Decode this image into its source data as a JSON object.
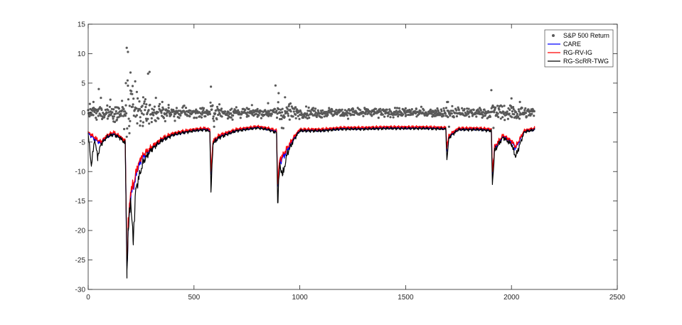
{
  "chart_data": {
    "type": "line",
    "title": "",
    "xlabel": "",
    "ylabel": "",
    "xlim": [
      0,
      2500
    ],
    "ylim": [
      -30,
      15
    ],
    "x_ticks": [
      0,
      500,
      1000,
      1500,
      2000,
      2500
    ],
    "x_tick_labels": [
      "0",
      "500",
      "1000",
      "1500",
      "2000",
      "2500"
    ],
    "y_ticks": [
      15,
      10,
      5,
      0,
      -5,
      -10,
      -15,
      -20,
      -25,
      -30
    ],
    "y_tick_labels": [
      "15",
      "10",
      "5",
      "0",
      "-5",
      "-10",
      "-15",
      "-20",
      "-25",
      "-30"
    ],
    "grid": false,
    "legend_position": "top-right",
    "n_obs": 2110,
    "series": [
      {
        "name": "S&P 500 Return",
        "style": "scatter",
        "color": "#595959",
        "points": [
          [
            10,
            0.6
          ],
          [
            25,
            1.8
          ],
          [
            40,
            -1.2
          ],
          [
            50,
            4.0
          ],
          [
            60,
            2.5
          ],
          [
            75,
            -0.8
          ],
          [
            90,
            1.2
          ],
          [
            105,
            2.2
          ],
          [
            120,
            -1.5
          ],
          [
            135,
            0.9
          ],
          [
            150,
            -0.6
          ],
          [
            160,
            2.0
          ],
          [
            170,
            -2.8
          ],
          [
            178,
            5.0
          ],
          [
            182,
            11.0
          ],
          [
            188,
            10.3
          ],
          [
            195,
            -3.5
          ],
          [
            200,
            6.8
          ],
          [
            210,
            4.5
          ],
          [
            222,
            5.3
          ],
          [
            230,
            3.5
          ],
          [
            245,
            -2.2
          ],
          [
            260,
            2.6
          ],
          [
            275,
            1.4
          ],
          [
            283,
            6.6
          ],
          [
            290,
            6.9
          ],
          [
            300,
            -1.6
          ],
          [
            320,
            2.5
          ],
          [
            350,
            1.8
          ],
          [
            380,
            1.3
          ],
          [
            410,
            -1.4
          ],
          [
            450,
            1.1
          ],
          [
            500,
            -0.9
          ],
          [
            540,
            0.8
          ],
          [
            580,
            4.4
          ],
          [
            595,
            -2.4
          ],
          [
            620,
            1.4
          ],
          [
            660,
            -1.0
          ],
          [
            700,
            0.9
          ],
          [
            750,
            -0.7
          ],
          [
            800,
            0.6
          ],
          [
            850,
            1.6
          ],
          [
            885,
            4.6
          ],
          [
            900,
            3.3
          ],
          [
            915,
            -2.6
          ],
          [
            930,
            2.6
          ],
          [
            950,
            1.4
          ],
          [
            980,
            0.9
          ],
          [
            1020,
            -0.6
          ],
          [
            1060,
            0.7
          ],
          [
            1100,
            -0.8
          ],
          [
            1150,
            0.6
          ],
          [
            1200,
            -0.5
          ],
          [
            1250,
            0.7
          ],
          [
            1300,
            -0.6
          ],
          [
            1350,
            0.5
          ],
          [
            1400,
            -0.7
          ],
          [
            1450,
            0.8
          ],
          [
            1500,
            -0.6
          ],
          [
            1550,
            0.6
          ],
          [
            1600,
            -0.5
          ],
          [
            1650,
            0.7
          ],
          [
            1700,
            1.8
          ],
          [
            1705,
            -2.4
          ],
          [
            1750,
            0.6
          ],
          [
            1800,
            -0.7
          ],
          [
            1850,
            0.8
          ],
          [
            1905,
            3.8
          ],
          [
            1915,
            -2.6
          ],
          [
            1950,
            1.2
          ],
          [
            2000,
            2.4
          ],
          [
            2040,
            1.8
          ],
          [
            2070,
            -0.8
          ],
          [
            2100,
            0.6
          ]
        ]
      },
      {
        "name": "CARE",
        "style": "line",
        "color": "#0000ff",
        "anchors": [
          [
            0,
            -3.5
          ],
          [
            30,
            -4.5
          ],
          [
            60,
            -5.2
          ],
          [
            90,
            -4.0
          ],
          [
            120,
            -3.6
          ],
          [
            150,
            -4.2
          ],
          [
            175,
            -5.0
          ],
          [
            183,
            -26.0
          ],
          [
            190,
            -19.5
          ],
          [
            200,
            -14.0
          ],
          [
            215,
            -12.5
          ],
          [
            230,
            -10.0
          ],
          [
            250,
            -8.0
          ],
          [
            270,
            -7.0
          ],
          [
            300,
            -6.0
          ],
          [
            350,
            -4.5
          ],
          [
            400,
            -3.7
          ],
          [
            450,
            -3.3
          ],
          [
            500,
            -3.0
          ],
          [
            550,
            -2.8
          ],
          [
            575,
            -3.0
          ],
          [
            580,
            -10.5
          ],
          [
            590,
            -5.0
          ],
          [
            620,
            -4.0
          ],
          [
            700,
            -3.0
          ],
          [
            800,
            -2.5
          ],
          [
            850,
            -2.8
          ],
          [
            890,
            -3.2
          ],
          [
            895,
            -12.5
          ],
          [
            905,
            -8.5
          ],
          [
            930,
            -7.0
          ],
          [
            970,
            -4.5
          ],
          [
            1000,
            -3.0
          ],
          [
            1100,
            -3.0
          ],
          [
            1200,
            -2.7
          ],
          [
            1300,
            -2.7
          ],
          [
            1400,
            -2.6
          ],
          [
            1500,
            -2.6
          ],
          [
            1600,
            -2.6
          ],
          [
            1690,
            -2.7
          ],
          [
            1695,
            -6.0
          ],
          [
            1705,
            -4.0
          ],
          [
            1750,
            -2.8
          ],
          [
            1850,
            -2.8
          ],
          [
            1905,
            -3.0
          ],
          [
            1910,
            -10.5
          ],
          [
            1920,
            -6.0
          ],
          [
            1960,
            -4.0
          ],
          [
            2000,
            -5.0
          ],
          [
            2020,
            -6.0
          ],
          [
            2060,
            -3.2
          ],
          [
            2110,
            -2.8
          ]
        ]
      },
      {
        "name": "RG-RV-IG",
        "style": "line",
        "color": "#ff0000",
        "anchors": [
          [
            0,
            -3.3
          ],
          [
            30,
            -4.2
          ],
          [
            60,
            -5.0
          ],
          [
            90,
            -3.8
          ],
          [
            120,
            -3.3
          ],
          [
            150,
            -4.0
          ],
          [
            175,
            -4.8
          ],
          [
            183,
            -25.5
          ],
          [
            190,
            -18.5
          ],
          [
            200,
            -13.5
          ],
          [
            215,
            -12.0
          ],
          [
            230,
            -9.5
          ],
          [
            250,
            -7.6
          ],
          [
            270,
            -6.8
          ],
          [
            300,
            -5.8
          ],
          [
            350,
            -4.3
          ],
          [
            400,
            -3.5
          ],
          [
            450,
            -3.1
          ],
          [
            500,
            -2.8
          ],
          [
            550,
            -2.6
          ],
          [
            575,
            -2.8
          ],
          [
            580,
            -10.0
          ],
          [
            590,
            -4.8
          ],
          [
            620,
            -3.8
          ],
          [
            700,
            -2.8
          ],
          [
            800,
            -2.3
          ],
          [
            850,
            -2.6
          ],
          [
            890,
            -3.0
          ],
          [
            895,
            -12.0
          ],
          [
            905,
            -8.0
          ],
          [
            930,
            -6.6
          ],
          [
            970,
            -4.2
          ],
          [
            1000,
            -2.8
          ],
          [
            1100,
            -2.8
          ],
          [
            1200,
            -2.5
          ],
          [
            1300,
            -2.5
          ],
          [
            1400,
            -2.4
          ],
          [
            1500,
            -2.4
          ],
          [
            1600,
            -2.4
          ],
          [
            1690,
            -2.5
          ],
          [
            1695,
            -5.8
          ],
          [
            1705,
            -3.8
          ],
          [
            1750,
            -2.6
          ],
          [
            1850,
            -2.6
          ],
          [
            1905,
            -2.8
          ],
          [
            1910,
            -10.0
          ],
          [
            1920,
            -5.8
          ],
          [
            1960,
            -3.8
          ],
          [
            2000,
            -4.8
          ],
          [
            2020,
            -5.8
          ],
          [
            2060,
            -3.0
          ],
          [
            2110,
            -2.6
          ]
        ]
      },
      {
        "name": "RG-ScRR-TWG",
        "style": "line",
        "color": "#000000",
        "anchors": [
          [
            0,
            -3.6
          ],
          [
            15,
            -9.0
          ],
          [
            30,
            -4.6
          ],
          [
            45,
            -7.5
          ],
          [
            60,
            -5.4
          ],
          [
            90,
            -4.1
          ],
          [
            120,
            -3.7
          ],
          [
            150,
            -4.3
          ],
          [
            175,
            -5.2
          ],
          [
            183,
            -26.8
          ],
          [
            190,
            -20.0
          ],
          [
            200,
            -14.5
          ],
          [
            212,
            -21.8
          ],
          [
            225,
            -13.0
          ],
          [
            240,
            -11.0
          ],
          [
            260,
            -8.4
          ],
          [
            280,
            -7.2
          ],
          [
            300,
            -6.2
          ],
          [
            350,
            -4.7
          ],
          [
            400,
            -3.8
          ],
          [
            450,
            -3.4
          ],
          [
            500,
            -3.1
          ],
          [
            550,
            -2.9
          ],
          [
            575,
            -3.2
          ],
          [
            580,
            -13.5
          ],
          [
            590,
            -5.2
          ],
          [
            620,
            -4.2
          ],
          [
            700,
            -3.1
          ],
          [
            800,
            -2.6
          ],
          [
            850,
            -2.9
          ],
          [
            890,
            -3.4
          ],
          [
            895,
            -15.3
          ],
          [
            905,
            -9.0
          ],
          [
            920,
            -10.5
          ],
          [
            940,
            -7.0
          ],
          [
            970,
            -4.7
          ],
          [
            1000,
            -3.1
          ],
          [
            1100,
            -3.1
          ],
          [
            1200,
            -2.8
          ],
          [
            1300,
            -2.8
          ],
          [
            1400,
            -2.7
          ],
          [
            1500,
            -2.7
          ],
          [
            1600,
            -2.7
          ],
          [
            1690,
            -2.8
          ],
          [
            1695,
            -8.0
          ],
          [
            1705,
            -4.2
          ],
          [
            1750,
            -2.9
          ],
          [
            1850,
            -2.9
          ],
          [
            1905,
            -3.1
          ],
          [
            1910,
            -12.2
          ],
          [
            1920,
            -6.5
          ],
          [
            1960,
            -4.2
          ],
          [
            2000,
            -5.4
          ],
          [
            2020,
            -7.5
          ],
          [
            2060,
            -3.3
          ],
          [
            2110,
            -2.9
          ]
        ]
      }
    ]
  }
}
